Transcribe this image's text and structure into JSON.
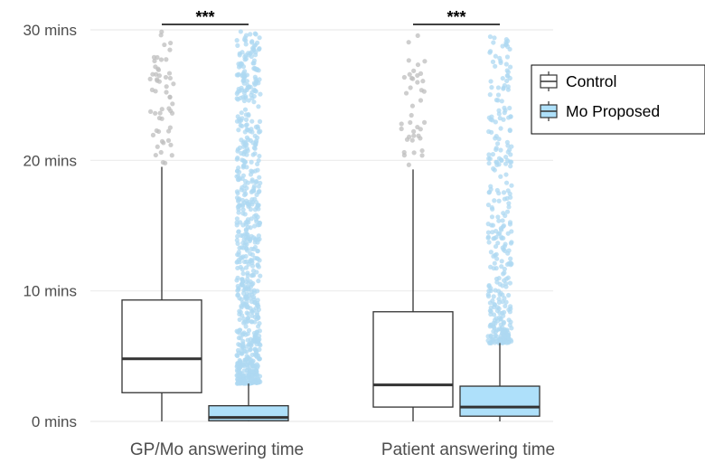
{
  "chart_data": {
    "type": "box",
    "title": "",
    "xlabel": "",
    "ylabel": "",
    "ylim": [
      0,
      30
    ],
    "yticks": [
      0,
      10,
      20,
      30
    ],
    "ytick_labels": [
      "0 mins",
      "10 mins",
      "20 mins",
      "30 mins"
    ],
    "categories": [
      "GP/Mo answering time",
      "Patient answering time"
    ],
    "grid": true,
    "legend_position": "right",
    "series": [
      {
        "name": "Control",
        "color": "#ffffff",
        "boxes": [
          {
            "whisker_low": 0.0,
            "q1": 2.2,
            "median": 4.8,
            "q3": 9.3,
            "whisker_high": 19.5
          },
          {
            "whisker_low": 0.0,
            "q1": 1.1,
            "median": 2.8,
            "q3": 8.4,
            "whisker_high": 19.3
          }
        ],
        "outliers": [
          {
            "count": 55,
            "min": 19.7,
            "max": 29.9
          },
          {
            "count": 40,
            "min": 19.6,
            "max": 29.9
          }
        ]
      },
      {
        "name": "Mo Proposed",
        "color": "#aee0fa",
        "boxes": [
          {
            "whisker_low": 0.0,
            "q1": 0.05,
            "median": 0.3,
            "q3": 1.2,
            "whisker_high": 2.9
          },
          {
            "whisker_low": 0.0,
            "q1": 0.4,
            "median": 1.1,
            "q3": 2.7,
            "whisker_high": 6.0
          }
        ],
        "outliers": [
          {
            "count": 700,
            "min": 2.9,
            "max": 29.9
          },
          {
            "count": 320,
            "min": 6.0,
            "max": 29.9
          }
        ]
      }
    ],
    "annotations": [
      {
        "text": "***",
        "category": "GP/Mo answering time"
      },
      {
        "text": "***",
        "category": "Patient answering time"
      }
    ],
    "colors": {
      "grid": "#ebebeb",
      "box_line": "#333333",
      "control_points": "#bdbdbd",
      "proposed_points": "#aed8f2"
    }
  }
}
